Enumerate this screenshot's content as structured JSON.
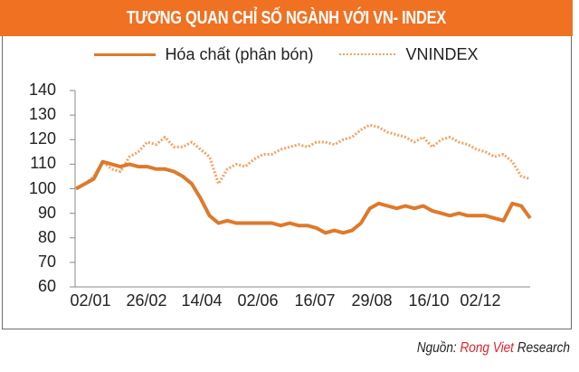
{
  "title": "TƯƠNG QUAN CHỈ SỐ NGÀNH VỚI VN- INDEX",
  "legend": {
    "series1": "Hóa chất (phân bón)",
    "series2": "VNINDEX"
  },
  "source": {
    "prefix": "Nguồn: ",
    "brand": "Rong Viet",
    "suffix": " Research"
  },
  "colors": {
    "title_bg": "#f07122",
    "series1": "#dd7a2c",
    "series2": "#f3a365",
    "source_brand": "#e0222b"
  },
  "chart_data": {
    "type": "line",
    "title": "TƯƠNG QUAN CHỈ SỐ NGÀNH VỚI VN- INDEX",
    "xlabel": "",
    "ylabel": "",
    "ylim": [
      60,
      140
    ],
    "yticks": [
      140,
      130,
      120,
      110,
      100,
      90,
      80,
      70,
      60
    ],
    "xticks": [
      "02/01",
      "26/02",
      "14/04",
      "02/06",
      "16/07",
      "29/08",
      "16/10",
      "02/12"
    ],
    "grid": false,
    "legend_position": "top",
    "x": [
      "02/01",
      "09/01",
      "16/01",
      "23/01",
      "30/01",
      "06/02",
      "13/02",
      "20/02",
      "26/02",
      "05/03",
      "12/03",
      "19/03",
      "26/03",
      "02/04",
      "09/04",
      "14/04",
      "21/04",
      "28/04",
      "05/05",
      "12/05",
      "19/05",
      "26/05",
      "02/06",
      "09/06",
      "16/06",
      "23/06",
      "30/06",
      "07/07",
      "16/07",
      "23/07",
      "30/07",
      "06/08",
      "13/08",
      "20/08",
      "29/08",
      "05/09",
      "12/09",
      "19/09",
      "26/09",
      "03/10",
      "10/10",
      "16/10",
      "23/10",
      "30/10",
      "06/11",
      "13/11",
      "20/11",
      "27/11",
      "02/12",
      "09/12",
      "16/12",
      "23/12"
    ],
    "series": [
      {
        "name": "Hóa chất (phân bón)",
        "style": "solid",
        "values": [
          100,
          102,
          104,
          111,
          110,
          109,
          110,
          109,
          109,
          108,
          108,
          107,
          105,
          102,
          96,
          89,
          86,
          87,
          86,
          86,
          86,
          86,
          86,
          85,
          86,
          85,
          85,
          84,
          82,
          83,
          82,
          83,
          86,
          92,
          94,
          93,
          92,
          93,
          92,
          93,
          91,
          90,
          89,
          90,
          89,
          89,
          89,
          88,
          87,
          94,
          93,
          88
        ]
      },
      {
        "name": "VNINDEX",
        "style": "dotted",
        "values": [
          100,
          102,
          105,
          111,
          108,
          107,
          113,
          115,
          119,
          118,
          121,
          117,
          117,
          119,
          116,
          113,
          102,
          108,
          110,
          109,
          112,
          114,
          114,
          116,
          117,
          118,
          117,
          119,
          119,
          118,
          120,
          121,
          124,
          126,
          125,
          123,
          122,
          121,
          119,
          121,
          117,
          120,
          121,
          119,
          118,
          116,
          115,
          113,
          114,
          111,
          105,
          104
        ]
      }
    ]
  }
}
